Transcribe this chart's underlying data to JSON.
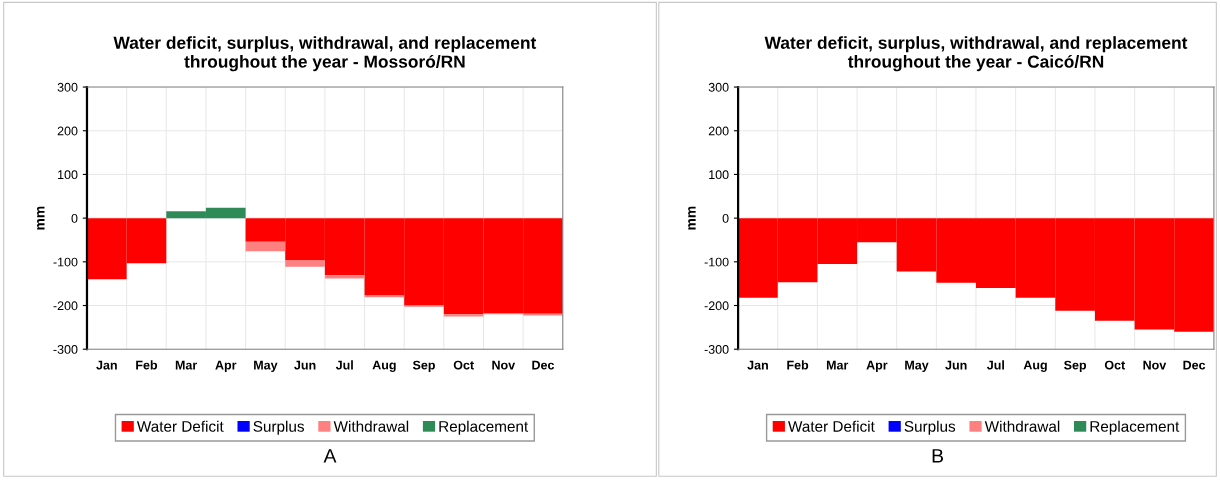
{
  "chart_data": [
    {
      "type": "bar",
      "title": "Water deficit, surplus, withdrawal, and replacement\nthroughout the year - Mossoró/RN",
      "ylabel": "mm",
      "stacked": true,
      "categories": [
        "Jan",
        "Feb",
        "Mar",
        "Apr",
        "May",
        "Jun",
        "Jul",
        "Aug",
        "Sep",
        "Oct",
        "Nov",
        "Dec"
      ],
      "ylim": [
        -300,
        300
      ],
      "yticks": [
        -300,
        -200,
        -100,
        0,
        100,
        200,
        300
      ],
      "grid": true,
      "legend": "bottom",
      "annotations": [
        "A"
      ],
      "series": [
        {
          "name": "Water Deficit",
          "color": "#ff0000",
          "values": [
            -140,
            -103,
            0,
            0,
            -54,
            -97,
            -131,
            -177,
            -200,
            -220,
            -217,
            -219
          ]
        },
        {
          "name": "Surplus",
          "color": "#0000ff",
          "values": [
            0,
            0,
            0,
            0,
            0,
            0,
            0,
            0,
            0,
            0,
            0,
            0
          ]
        },
        {
          "name": "Withdrawal",
          "color": "#ff8080",
          "values": [
            0,
            0,
            0,
            0,
            -22,
            -14,
            -7,
            -4,
            -3,
            -5,
            -3,
            -4
          ]
        },
        {
          "name": "Replacement",
          "color": "#2e8b57",
          "values": [
            0,
            0,
            16,
            24,
            0,
            0,
            0,
            0,
            0,
            0,
            0,
            0
          ]
        }
      ]
    },
    {
      "type": "bar",
      "title": "Water deficit, surplus, withdrawal, and replacement\nthroughout the year - Caicó/RN",
      "ylabel": "mm",
      "stacked": true,
      "categories": [
        "Jan",
        "Feb",
        "Mar",
        "Apr",
        "May",
        "Jun",
        "Jul",
        "Aug",
        "Sep",
        "Oct",
        "Nov",
        "Dec"
      ],
      "ylim": [
        -300,
        300
      ],
      "yticks": [
        -300,
        -200,
        -100,
        0,
        100,
        200,
        300
      ],
      "grid": true,
      "legend": "bottom",
      "annotations": [
        "B"
      ],
      "series": [
        {
          "name": "Water Deficit",
          "color": "#ff0000",
          "values": [
            -182,
            -147,
            -105,
            -55,
            -122,
            -148,
            -160,
            -182,
            -212,
            -235,
            -255,
            -260
          ]
        },
        {
          "name": "Surplus",
          "color": "#0000ff",
          "values": [
            0,
            0,
            0,
            0,
            0,
            0,
            0,
            0,
            0,
            0,
            0,
            0
          ]
        },
        {
          "name": "Withdrawal",
          "color": "#ff8080",
          "values": [
            0,
            0,
            0,
            0,
            0,
            0,
            0,
            0,
            0,
            0,
            0,
            0
          ]
        },
        {
          "name": "Replacement",
          "color": "#2e8b57",
          "values": [
            0,
            0,
            0,
            0,
            0,
            0,
            0,
            0,
            0,
            0,
            0,
            0
          ]
        }
      ]
    }
  ]
}
